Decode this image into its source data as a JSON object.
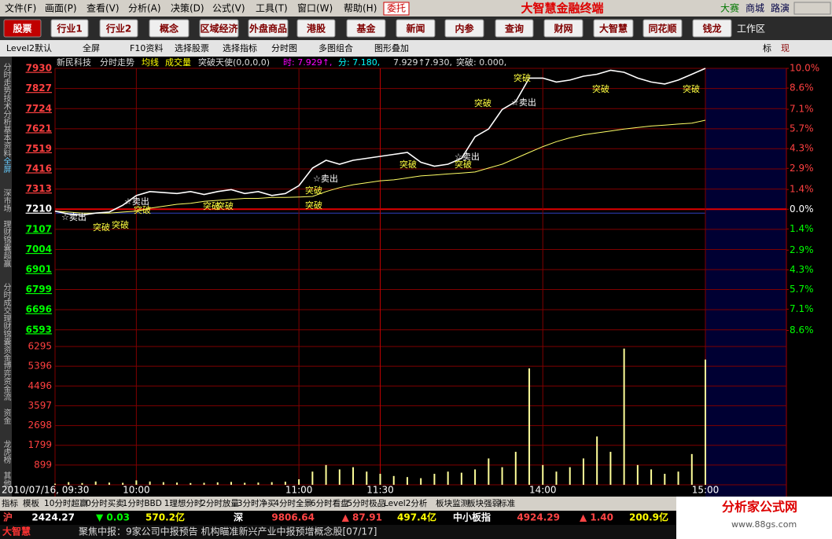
{
  "menu": [
    "文件(F)",
    "画面(P)",
    "查看(V)",
    "分析(A)",
    "决策(D)",
    "公式(V)",
    "工具(T)",
    "窗口(W)",
    "帮助(H)"
  ],
  "title_bar": {
    "entrust": "委托",
    "title": "大智慧金融终端",
    "links": [
      "大赛",
      "商城",
      "路演"
    ]
  },
  "toolbar": [
    "股票",
    "行业1",
    "行业2",
    "概念",
    "区域经济",
    "外盘商品",
    "港股",
    "基金",
    "新闻",
    "内参",
    "查询",
    "财网",
    "大智慧",
    "同花顺",
    "钱龙"
  ],
  "workspace": "工作区",
  "tabs": [
    "Level2默认",
    "全屏",
    "F10资料",
    "选择股票",
    "选择指标",
    "分时图",
    "多图组合",
    "图形叠加"
  ],
  "right_tabs": [
    "标",
    "现"
  ],
  "side_tabs": [
    "分时走势",
    "技术分析",
    "基本资料",
    "全屏",
    "深市场",
    "理财锦囊",
    "超赢",
    "分时成交",
    "理财锦囊",
    "资金博弈",
    "资金流",
    "资金",
    "龙虎榜",
    "其他"
  ],
  "info": [
    "新民科技",
    "分时走势",
    "均线",
    "成交量",
    "突破天使(0,0,0,0)",
    "时: 7.929↑,",
    "分: 7.180,",
    "7.929↑,",
    "7.930,",
    "突破: 0.000,"
  ],
  "annotations": [
    "☆卖出",
    "突破",
    "突破",
    "☆卖出",
    "突破",
    "突破",
    "突破",
    "☆卖出",
    "突破",
    "突破",
    "突破",
    "☆卖出",
    "突破",
    "突破",
    "☆卖出",
    "突破",
    "突破",
    "突破"
  ],
  "chart_data": {
    "type": "line",
    "x": [
      "09:30",
      "09:35",
      "09:40",
      "09:45",
      "09:50",
      "09:55",
      "10:00",
      "10:05",
      "10:10",
      "10:15",
      "10:20",
      "10:25",
      "10:30",
      "10:35",
      "10:40",
      "10:45",
      "10:50",
      "10:55",
      "11:00",
      "11:05",
      "11:10",
      "11:15",
      "11:20",
      "11:25",
      "11:30",
      "13:05",
      "13:10",
      "13:15",
      "13:20",
      "13:25",
      "13:30",
      "13:35",
      "13:40",
      "13:45",
      "13:50",
      "13:55",
      "14:00",
      "14:05",
      "14:10",
      "14:15",
      "14:20",
      "14:25",
      "14:30",
      "14:35",
      "14:40",
      "14:45",
      "14:50",
      "14:55",
      "15:00"
    ],
    "series": [
      {
        "name": "分时走势",
        "color": "#ffffff",
        "values": [
          7200,
          7185,
          7180,
          7190,
          7195,
          7230,
          7280,
          7300,
          7295,
          7290,
          7300,
          7285,
          7300,
          7310,
          7290,
          7300,
          7280,
          7290,
          7330,
          7420,
          7460,
          7440,
          7460,
          7470,
          7480,
          7490,
          7500,
          7450,
          7430,
          7440,
          7470,
          7580,
          7620,
          7720,
          7760,
          7880,
          7880,
          7860,
          7870,
          7890,
          7900,
          7920,
          7910,
          7880,
          7860,
          7850,
          7870,
          7900,
          7930
        ]
      },
      {
        "name": "均线",
        "color": "#ffff66",
        "values": [
          7200,
          7195,
          7190,
          7190,
          7190,
          7195,
          7200,
          7215,
          7225,
          7235,
          7240,
          7250,
          7255,
          7260,
          7265,
          7265,
          7270,
          7270,
          7272,
          7275,
          7300,
          7320,
          7335,
          7345,
          7355,
          7360,
          7370,
          7380,
          7385,
          7390,
          7395,
          7400,
          7420,
          7440,
          7470,
          7500,
          7530,
          7555,
          7575,
          7590,
          7600,
          7610,
          7620,
          7628,
          7635,
          7640,
          7645,
          7650,
          7665
        ]
      }
    ],
    "volume": {
      "name": "成交量",
      "color": "#ffff99",
      "values": [
        50,
        120,
        80,
        150,
        100,
        90,
        200,
        150,
        120,
        100,
        80,
        90,
        110,
        130,
        90,
        100,
        120,
        140,
        250,
        600,
        900,
        700,
        800,
        600,
        500,
        400,
        350,
        300,
        500,
        600,
        550,
        700,
        1200,
        800,
        1500,
        5300,
        900,
        600,
        800,
        1200,
        2200,
        1500,
        6200,
        900,
        700,
        500,
        600,
        1400,
        5700
      ],
      "ylim": [
        0,
        6295
      ],
      "yticks": [
        6295,
        5396,
        4496,
        3597,
        2698,
        1799,
        899
      ]
    },
    "ylim": [
      6552,
      7930
    ],
    "yticks": [
      7930,
      7827,
      7724,
      7621,
      7519,
      7416,
      7313,
      7210,
      7107,
      7004,
      6901,
      6799,
      6696,
      6593
    ],
    "y2lim": [
      -9.13,
      10.0
    ],
    "y2ticks": [
      {
        "value": 10.0,
        "label": "10.0%"
      },
      {
        "value": 8.6,
        "label": "8.6%"
      },
      {
        "value": 7.1,
        "label": "7.1%"
      },
      {
        "value": 5.7,
        "label": "5.7%"
      },
      {
        "value": 4.3,
        "label": "4.3%"
      },
      {
        "value": 2.9,
        "label": "2.9%"
      },
      {
        "value": 1.4,
        "label": "1.4%"
      },
      {
        "value": 0.0,
        "label": "0.0%"
      },
      {
        "value": -1.4,
        "label": "1.4%"
      },
      {
        "value": -2.9,
        "label": "2.9%"
      },
      {
        "value": -4.3,
        "label": "4.3%"
      },
      {
        "value": -5.7,
        "label": "5.7%"
      },
      {
        "value": -7.1,
        "label": "7.1%"
      },
      {
        "value": -8.6,
        "label": "8.6%"
      }
    ],
    "xticks": [
      "2010/07/16, 09:30",
      "10:00",
      "11:00",
      "11:30",
      "14:00",
      "15:00"
    ],
    "grid": true
  },
  "bottom_tabs": [
    "指标",
    "模板",
    "10分时超赢",
    "0分时买卖",
    "1分时BBD",
    "1理想分时",
    "2分时放量",
    "3分时净买",
    "4分时全景",
    "6分时看盘",
    "5分时极品",
    "Level2分析",
    "板块监测",
    "板块强弱",
    "标准"
  ],
  "index_row": [
    "沪",
    "2424.27",
    "▼ 0.03",
    "570.2亿",
    "深",
    "9806.64",
    "▲ 87.91",
    "497.4亿",
    "中小板指",
    "4924.29",
    "▲ 1.40",
    "200.9亿"
  ],
  "news": {
    "brand": "大智慧",
    "headline": "聚焦中报：9家公司中报预告 机构瞄准新兴产业中报预增概念股[07/17]"
  },
  "logo": {
    "name": "分析家公式网",
    "url": "www.88gs.com"
  }
}
